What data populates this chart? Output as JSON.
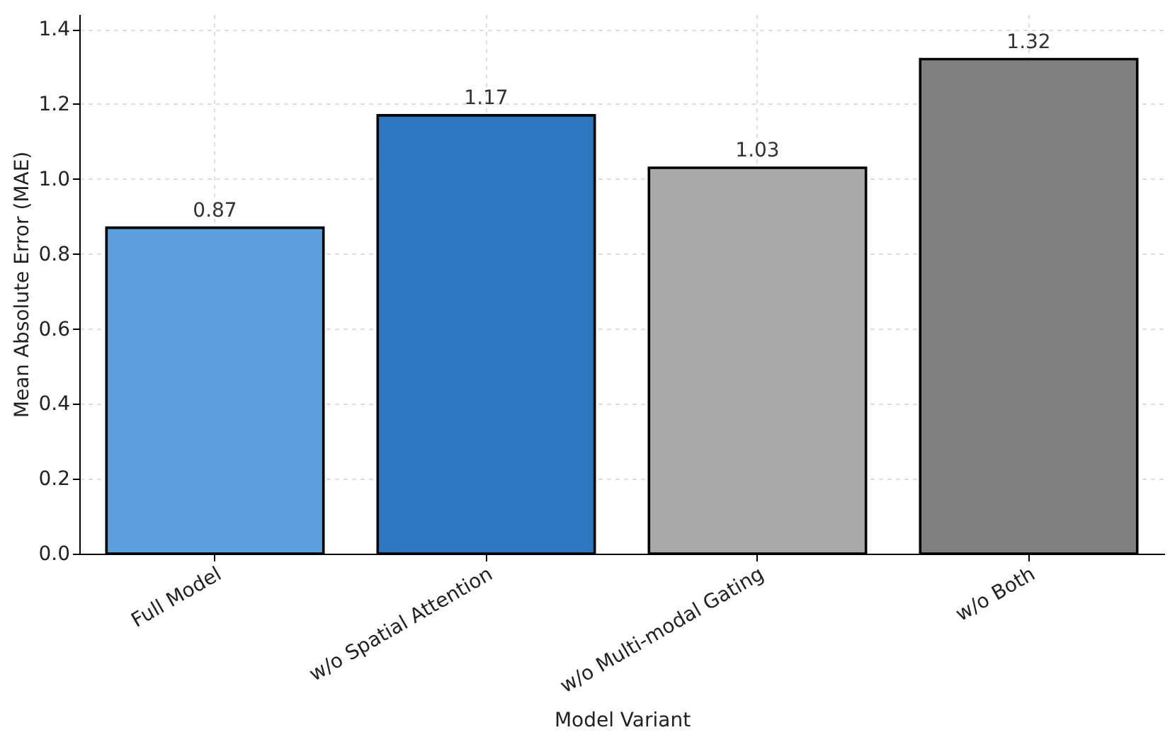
{
  "chart_data": {
    "type": "bar",
    "xlabel": "Model Variant",
    "ylabel": "Mean Absolute Error (MAE)",
    "categories": [
      "Full Model",
      "w/o Spatial Attention",
      "w/o Multi-modal Gating",
      "w/o Both"
    ],
    "values": [
      0.87,
      1.17,
      1.03,
      1.32
    ],
    "colors": [
      "#5ba0dc",
      "#2e76c0",
      "#a9a9a9",
      "#808080"
    ],
    "ylim": [
      0,
      1.44
    ],
    "yticks": [
      {
        "value": 0,
        "label": "0.0"
      },
      0.2,
      0.4,
      0.6,
      0.8,
      {
        "value": 1,
        "label": "1.0"
      },
      1.2,
      1.4
    ],
    "grid": true,
    "data_labels": true
  }
}
